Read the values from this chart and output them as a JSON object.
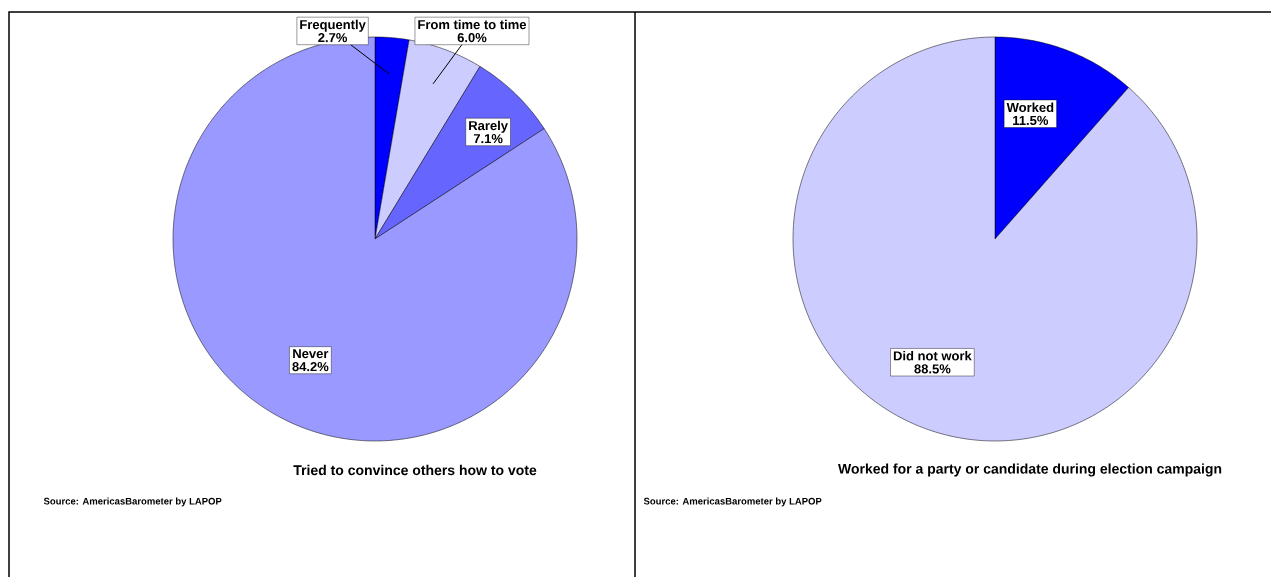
{
  "chart_data": [
    {
      "type": "pie",
      "title": "Tried to convince others how to vote",
      "categories": [
        "Frequently",
        "From time to time",
        "Rarely",
        "Never"
      ],
      "values": [
        2.7,
        6.0,
        7.1,
        84.2
      ],
      "value_labels": [
        "2.7%",
        "6.0%",
        "7.1%",
        "84.2%"
      ],
      "colors": [
        "#0000ff",
        "#ccccff",
        "#6666ff",
        "#9999ff"
      ],
      "annotations": [
        "Source: AmericasBarometer by  LAPOP"
      ]
    },
    {
      "type": "pie",
      "title": "Worked for a party or candidate during election campaign",
      "categories": [
        "Worked",
        "Did not work"
      ],
      "values": [
        11.5,
        88.5
      ],
      "value_labels": [
        "11.5%",
        "88.5%"
      ],
      "colors": [
        "#0000ff",
        "#ccccff"
      ],
      "annotations": [
        "Source: AmericasBarometer by  LAPOP"
      ]
    }
  ]
}
